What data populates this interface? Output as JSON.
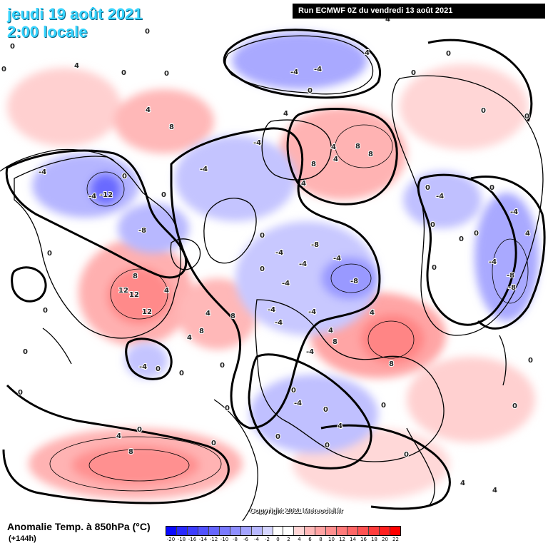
{
  "header": {
    "date": "jeudi 19 août 2021",
    "time": "2:00 locale"
  },
  "run_banner": "Run ECMWF 0Z du vendredi 13 août 2021",
  "credit": "Copyright 2021 Meteociel.fr",
  "footer": {
    "title": "Anomalie Temp. à 850hPa (°C)",
    "lead_time": "(+144h)"
  },
  "legend": {
    "ticks": [
      "-20",
      "-18",
      "-16",
      "-14",
      "-12",
      "-10",
      "-8",
      "-6",
      "-4",
      "-2",
      "0",
      "2",
      "4",
      "6",
      "8",
      "10",
      "12",
      "14",
      "16",
      "18",
      "20",
      "22"
    ],
    "colors": [
      "#0a0aff",
      "#2a2aff",
      "#3d3dff",
      "#5252ff",
      "#6666ff",
      "#7a7aff",
      "#8f8fff",
      "#a3a3ff",
      "#b8b8ff",
      "#d6d6ff",
      "#ffffff",
      "#ffffff",
      "#ffd6d6",
      "#ffb8b8",
      "#ffa3a3",
      "#ff8f8f",
      "#ff7a7a",
      "#ff6666",
      "#ff5252",
      "#ff3d3d",
      "#ff1f1f",
      "#ff0000"
    ]
  },
  "contour_labels": [
    {
      "text": "0",
      "lon": "w",
      "id": 1
    },
    {
      "text": "4"
    },
    {
      "text": "-4"
    },
    {
      "text": "8"
    },
    {
      "text": "-8"
    },
    {
      "text": "12"
    },
    {
      "text": "-12"
    }
  ],
  "colors": {
    "cold": "#9f9fff",
    "cold_strong": "#6a6aff",
    "warm": "#ffb0b0",
    "warm_strong": "#ff8080",
    "neutral": "#ffffff"
  }
}
